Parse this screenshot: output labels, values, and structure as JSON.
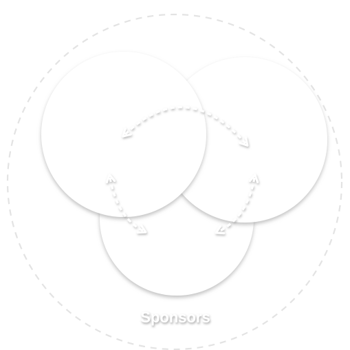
{
  "diagram": {
    "outer_label": "Sponsors",
    "colors": {
      "background": "#ffffff",
      "circle_fill": "#ffffff",
      "dashed_stroke": "#e2e2e2",
      "label_fill": "#ffffff",
      "shadow": "#9a9a9a"
    }
  }
}
